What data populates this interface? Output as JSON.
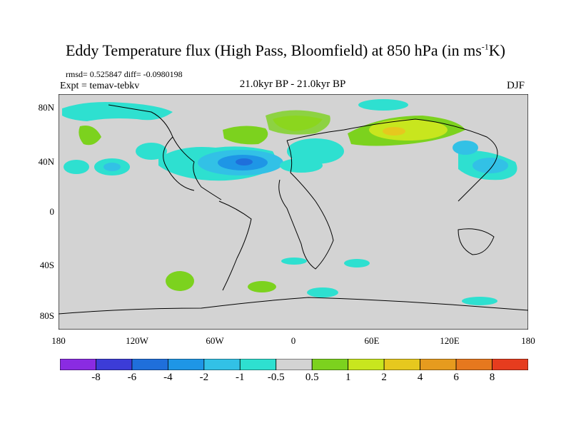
{
  "title": {
    "main": "Eddy Temperature flux (High Pass, Bloomfield) at 850 hPa (in ms",
    "sup": "-1",
    "end": "K)"
  },
  "stats_line": "rmsd= 0.525847 diff= -0.0980198",
  "expt_line": "Expt = temav-tebkv",
  "period": "21.0kyr BP - 21.0kyr BP",
  "season": "DJF",
  "y_ticks": [
    "80N",
    "40N",
    "0",
    "40S",
    "80S"
  ],
  "x_ticks": [
    "180",
    "120W",
    "60W",
    "0",
    "60E",
    "120E",
    "180"
  ],
  "colorbar": {
    "labels": [
      "-8",
      "-6",
      "-4",
      "-2",
      "-1",
      "-0.5",
      "0.5",
      "1",
      "2",
      "4",
      "6",
      "8"
    ],
    "colors": [
      "#8a2be2",
      "#3c3cd7",
      "#1f6fdb",
      "#1e96e6",
      "#32c1e6",
      "#2ee0d0",
      "#d3d3d3",
      "#7cd21e",
      "#c8e61e",
      "#e6c81e",
      "#e69b1e",
      "#e6781e",
      "#e63c1e"
    ]
  },
  "map": {
    "ocean_land_color": "#d3d3d3"
  }
}
